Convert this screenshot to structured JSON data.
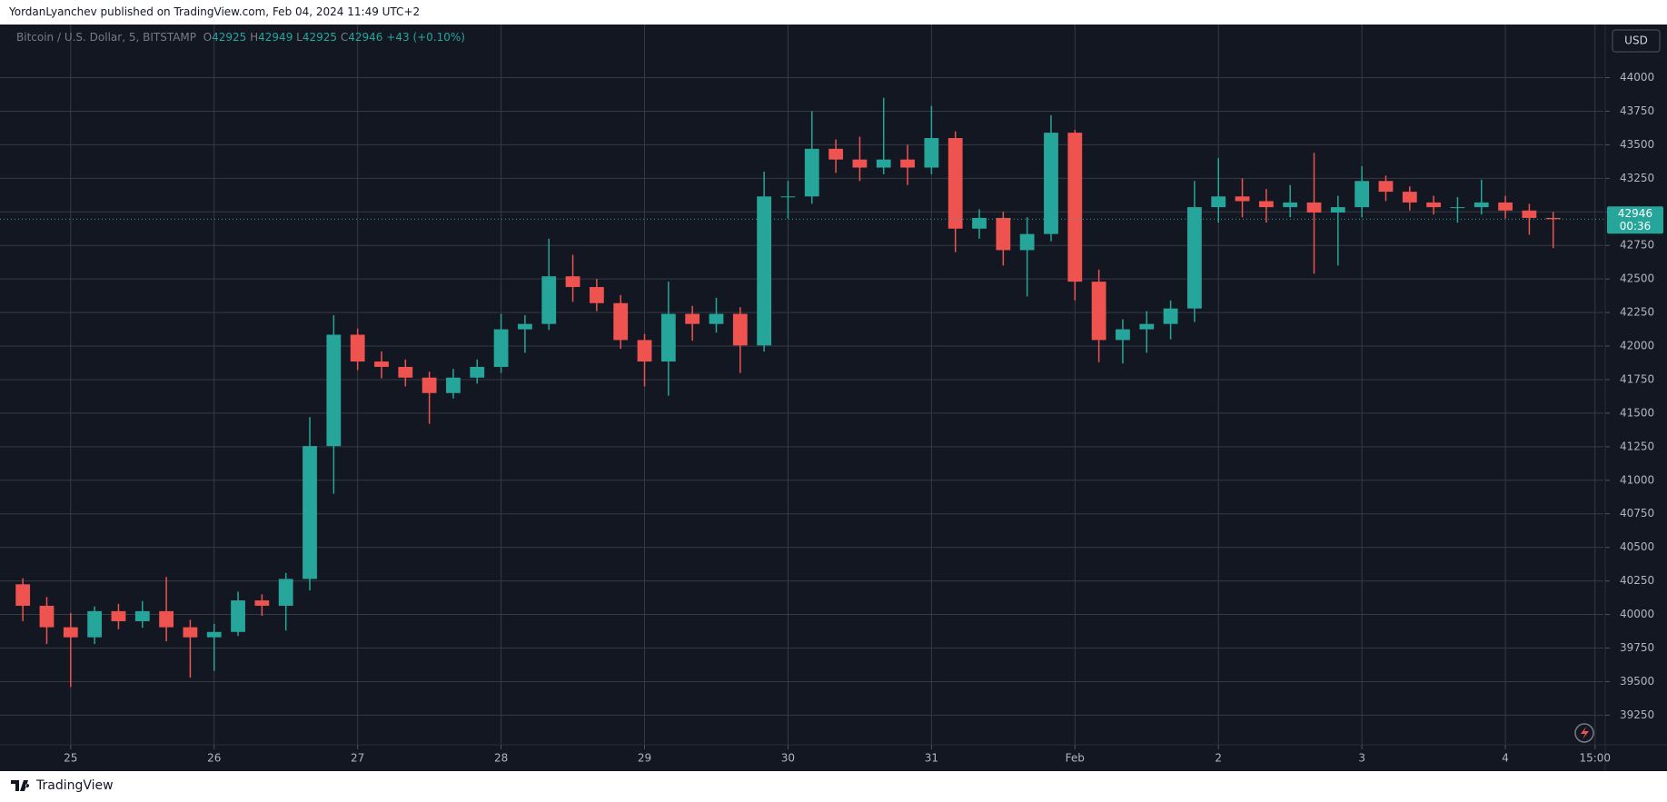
{
  "header": "YordanLyanchev published on TradingView.com, Feb 04, 2024 11:49 UTC+2",
  "footer_brand": "TradingView",
  "chart_data": {
    "type": "candlestick",
    "legend": {
      "symbol": "Bitcoin / U.S. Dollar, 5, BITSTAMP",
      "o_label": "O",
      "open": 42925,
      "h_label": "H",
      "high": 42949,
      "l_label": "L",
      "low": 42925,
      "c_label": "C",
      "close": 42946,
      "change": "+43",
      "change_pct": "(+0.10%)"
    },
    "currency": "USD",
    "last_price": 42946,
    "countdown": "00:36",
    "up_color": "#26a69a",
    "down_color": "#ef5350",
    "grid": true,
    "xlim": [
      -0.5,
      66.1
    ],
    "ylim": [
      39036,
      44396
    ],
    "xticks": [
      {
        "value": 2,
        "label": "25"
      },
      {
        "value": 8,
        "label": "26"
      },
      {
        "value": 14,
        "label": "27"
      },
      {
        "value": 20,
        "label": "28"
      },
      {
        "value": 26,
        "label": "29"
      },
      {
        "value": 32,
        "label": "30"
      },
      {
        "value": 38,
        "label": "31"
      },
      {
        "value": 44,
        "label": "Feb"
      },
      {
        "value": 50,
        "label": "2"
      },
      {
        "value": 56,
        "label": "3"
      },
      {
        "value": 62,
        "label": "4"
      },
      {
        "value": 65.75,
        "label": "15:00"
      }
    ],
    "yticks": [
      39250,
      39500,
      39750,
      40000,
      40250,
      40500,
      40750,
      41000,
      41250,
      41500,
      41750,
      42000,
      42250,
      42500,
      42750,
      43000,
      43250,
      43500,
      43750,
      44000
    ],
    "open": [
      40225,
      40065,
      39905,
      39830,
      40025,
      39950,
      40025,
      39905,
      39830,
      39870,
      40105,
      40065,
      40265,
      41255,
      42085,
      41885,
      41845,
      41765,
      41650,
      41765,
      41845,
      42125,
      42165,
      42520,
      42440,
      42320,
      42045,
      41885,
      42240,
      42165,
      42240,
      42005,
      43115,
      43115,
      43470,
      43390,
      43330,
      43390,
      43330,
      43550,
      42875,
      42955,
      42715,
      42835,
      43590,
      42480,
      42045,
      42125,
      42165,
      42280,
      43035,
      43115,
      43080,
      43035,
      43070,
      42995,
      43035,
      43230,
      43150,
      43070,
      43035,
      43035,
      43070,
      43010,
      42955
    ],
    "high": [
      40270,
      40130,
      40010,
      40060,
      40080,
      40100,
      40280,
      39960,
      39930,
      40170,
      40150,
      40310,
      41470,
      42230,
      42130,
      41960,
      41900,
      41810,
      41830,
      41900,
      42240,
      42230,
      42800,
      42680,
      42500,
      42380,
      42090,
      42480,
      42300,
      42360,
      42290,
      43300,
      43230,
      43750,
      43540,
      43560,
      43850,
      43500,
      43790,
      43600,
      43020,
      43000,
      42960,
      43720,
      43610,
      42570,
      42200,
      42260,
      42340,
      43230,
      43400,
      43250,
      43170,
      43200,
      43440,
      43120,
      43340,
      43270,
      43190,
      43120,
      43110,
      43240,
      43120,
      43060,
      43000
    ],
    "low": [
      39950,
      39780,
      39460,
      39780,
      39890,
      39900,
      39800,
      39530,
      39580,
      39840,
      39990,
      39880,
      40180,
      40900,
      41820,
      41760,
      41700,
      41420,
      41610,
      41720,
      41800,
      41950,
      42120,
      42330,
      42260,
      41980,
      41700,
      41630,
      42040,
      42100,
      41800,
      41960,
      42950,
      43060,
      43290,
      43230,
      43280,
      43200,
      43280,
      42700,
      42800,
      42600,
      42370,
      42780,
      42340,
      41880,
      41870,
      41950,
      42050,
      42180,
      42920,
      42960,
      42920,
      42960,
      42540,
      42600,
      42960,
      43080,
      43010,
      42980,
      42920,
      42980,
      42950,
      42830,
      42730
    ],
    "close": [
      40065,
      39905,
      39830,
      40025,
      39950,
      40025,
      39905,
      39830,
      39870,
      40105,
      40065,
      40265,
      41255,
      42085,
      41885,
      41845,
      41765,
      41650,
      41765,
      41845,
      42125,
      42165,
      42520,
      42440,
      42320,
      42045,
      41885,
      42240,
      42165,
      42240,
      42005,
      43115,
      43115,
      43470,
      43390,
      43330,
      43390,
      43330,
      43550,
      42875,
      42955,
      42715,
      42835,
      43590,
      42480,
      42045,
      42125,
      42165,
      42280,
      43035,
      43115,
      43080,
      43035,
      43070,
      42995,
      43035,
      43230,
      43150,
      43070,
      43035,
      43035,
      43070,
      43010,
      42955,
      42946
    ]
  }
}
